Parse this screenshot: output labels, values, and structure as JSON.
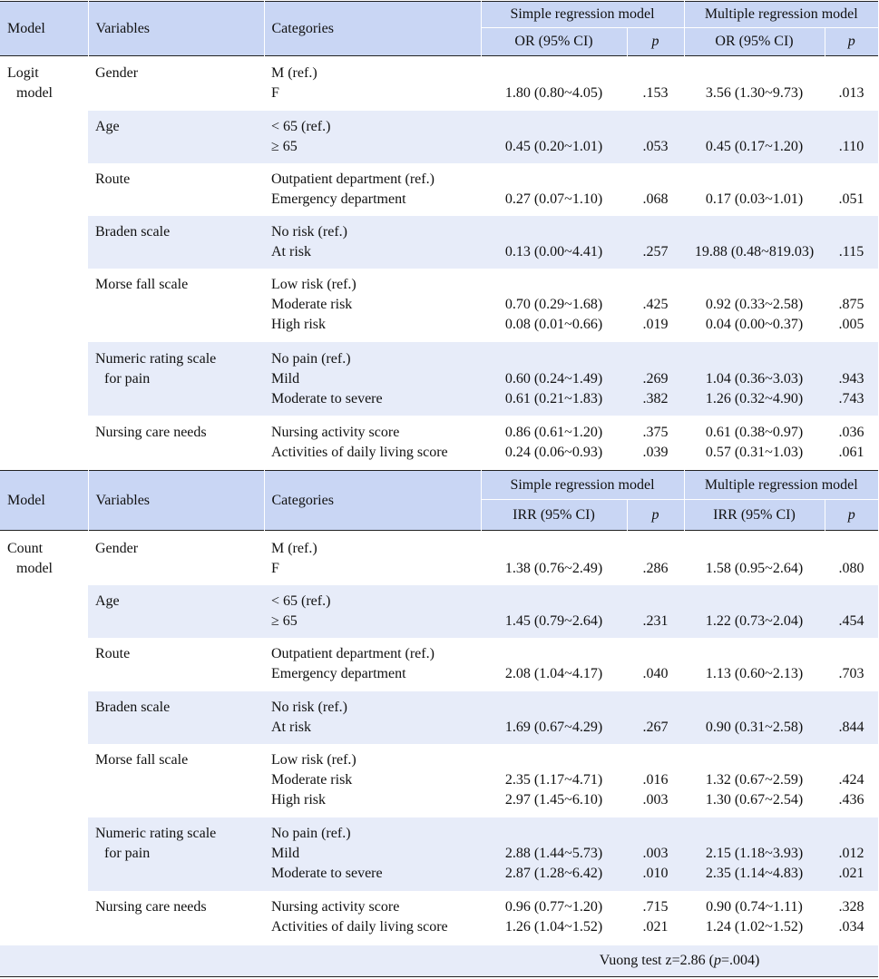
{
  "header": {
    "model": "Model",
    "variables": "Variables",
    "categories": "Categories",
    "simple": "Simple regression model",
    "multiple": "Multiple regression model",
    "p": "p"
  },
  "logit": {
    "model_line1": "Logit",
    "model_line2": "model",
    "est_label": "OR (95% CI)",
    "rows": [
      {
        "var": [
          "Gender"
        ],
        "cats": [
          "M (ref.)",
          "F"
        ],
        "s_or": [
          "",
          "1.80 (0.80~4.05)"
        ],
        "s_p": [
          "",
          ".153"
        ],
        "m_or": [
          "",
          "3.56 (1.30~9.73)"
        ],
        "m_p": [
          "",
          ".013"
        ]
      },
      {
        "var": [
          "Age"
        ],
        "cats": [
          "< 65 (ref.)",
          "≥ 65"
        ],
        "s_or": [
          "",
          "0.45 (0.20~1.01)"
        ],
        "s_p": [
          "",
          ".053"
        ],
        "m_or": [
          "",
          "0.45 (0.17~1.20)"
        ],
        "m_p": [
          "",
          ".110"
        ]
      },
      {
        "var": [
          "Route"
        ],
        "cats": [
          "Outpatient department (ref.)",
          "Emergency department"
        ],
        "s_or": [
          "",
          "0.27 (0.07~1.10)"
        ],
        "s_p": [
          "",
          ".068"
        ],
        "m_or": [
          "",
          "0.17 (0.03~1.01)"
        ],
        "m_p": [
          "",
          ".051"
        ]
      },
      {
        "var": [
          "Braden scale"
        ],
        "cats": [
          "No risk (ref.)",
          "At risk"
        ],
        "s_or": [
          "",
          "0.13 (0.00~4.41)"
        ],
        "s_p": [
          "",
          ".257"
        ],
        "m_or": [
          "",
          "19.88 (0.48~819.03)"
        ],
        "m_p": [
          "",
          ".115"
        ]
      },
      {
        "var": [
          "Morse fall scale"
        ],
        "cats": [
          "Low risk (ref.)",
          "Moderate risk",
          "High risk"
        ],
        "s_or": [
          "",
          "0.70 (0.29~1.68)",
          "0.08 (0.01~0.66)"
        ],
        "s_p": [
          "",
          ".425",
          ".019"
        ],
        "m_or": [
          "",
          "0.92 (0.33~2.58)",
          "0.04 (0.00~0.37)"
        ],
        "m_p": [
          "",
          ".875",
          ".005"
        ]
      },
      {
        "var": [
          "Numeric rating scale",
          "for pain"
        ],
        "cats": [
          "No pain (ref.)",
          "Mild",
          "Moderate to severe"
        ],
        "s_or": [
          "",
          "0.60 (0.24~1.49)",
          "0.61 (0.21~1.83)"
        ],
        "s_p": [
          "",
          ".269",
          ".382"
        ],
        "m_or": [
          "",
          "1.04 (0.36~3.03)",
          "1.26 (0.32~4.90)"
        ],
        "m_p": [
          "",
          ".943",
          ".743"
        ]
      },
      {
        "var": [
          "Nursing care needs"
        ],
        "cats": [
          "Nursing activity score",
          "Activities of daily living score"
        ],
        "s_or": [
          "0.86 (0.61~1.20)",
          "0.24 (0.06~0.93)"
        ],
        "s_p": [
          ".375",
          ".039"
        ],
        "m_or": [
          "0.61 (0.38~0.97)",
          "0.57 (0.31~1.03)"
        ],
        "m_p": [
          ".036",
          ".061"
        ]
      }
    ]
  },
  "count": {
    "model_line1": "Count",
    "model_line2": "model",
    "est_label": "IRR (95%  CI)",
    "rows": [
      {
        "var": [
          "Gender"
        ],
        "cats": [
          "M (ref.)",
          "F"
        ],
        "s_or": [
          "",
          "1.38 (0.76~2.49)"
        ],
        "s_p": [
          "",
          ".286"
        ],
        "m_or": [
          "",
          "1.58 (0.95~2.64)"
        ],
        "m_p": [
          "",
          ".080"
        ]
      },
      {
        "var": [
          "Age"
        ],
        "cats": [
          "< 65 (ref.)",
          "≥ 65"
        ],
        "s_or": [
          "",
          "1.45 (0.79~2.64)"
        ],
        "s_p": [
          "",
          ".231"
        ],
        "m_or": [
          "",
          "1.22 (0.73~2.04)"
        ],
        "m_p": [
          "",
          ".454"
        ]
      },
      {
        "var": [
          "Route"
        ],
        "cats": [
          "Outpatient department (ref.)",
          "Emergency department"
        ],
        "s_or": [
          "",
          "2.08 (1.04~4.17)"
        ],
        "s_p": [
          "",
          ".040"
        ],
        "m_or": [
          "",
          "1.13 (0.60~2.13)"
        ],
        "m_p": [
          "",
          ".703"
        ]
      },
      {
        "var": [
          "Braden scale"
        ],
        "cats": [
          "No risk (ref.)",
          "At risk"
        ],
        "s_or": [
          "",
          "1.69 (0.67~4.29)"
        ],
        "s_p": [
          "",
          ".267"
        ],
        "m_or": [
          "",
          "0.90 (0.31~2.58)"
        ],
        "m_p": [
          "",
          ".844"
        ]
      },
      {
        "var": [
          "Morse fall scale"
        ],
        "cats": [
          "Low risk (ref.)",
          "Moderate risk",
          "High risk"
        ],
        "s_or": [
          "",
          "2.35 (1.17~4.71)",
          "2.97 (1.45~6.10)"
        ],
        "s_p": [
          "",
          ".016",
          ".003"
        ],
        "m_or": [
          "",
          "1.32 (0.67~2.59)",
          "1.30 (0.67~2.54)"
        ],
        "m_p": [
          "",
          ".424",
          ".436"
        ]
      },
      {
        "var": [
          "Numeric rating scale",
          "for pain"
        ],
        "cats": [
          "No pain (ref.)",
          "Mild",
          "Moderate to severe"
        ],
        "s_or": [
          "",
          "2.88 (1.44~5.73)",
          "2.87 (1.28~6.42)"
        ],
        "s_p": [
          "",
          ".003",
          ".010"
        ],
        "m_or": [
          "",
          "2.15 (1.18~3.93)",
          "2.35 (1.14~4.83)"
        ],
        "m_p": [
          "",
          ".012",
          ".021"
        ]
      },
      {
        "var": [
          "Nursing care needs"
        ],
        "cats": [
          "Nursing activity score",
          "Activities of daily living score"
        ],
        "s_or": [
          "0.96 (0.77~1.20)",
          "1.26 (1.04~1.52)"
        ],
        "s_p": [
          ".715",
          ".021"
        ],
        "m_or": [
          "0.90 (0.74~1.11)",
          "1.24 (1.02~1.52)"
        ],
        "m_p": [
          ".328",
          ".034"
        ]
      }
    ]
  },
  "vuong": {
    "prefix": "Vuong test z=2.86 (",
    "p": "p",
    "suffix": "=.004)"
  }
}
